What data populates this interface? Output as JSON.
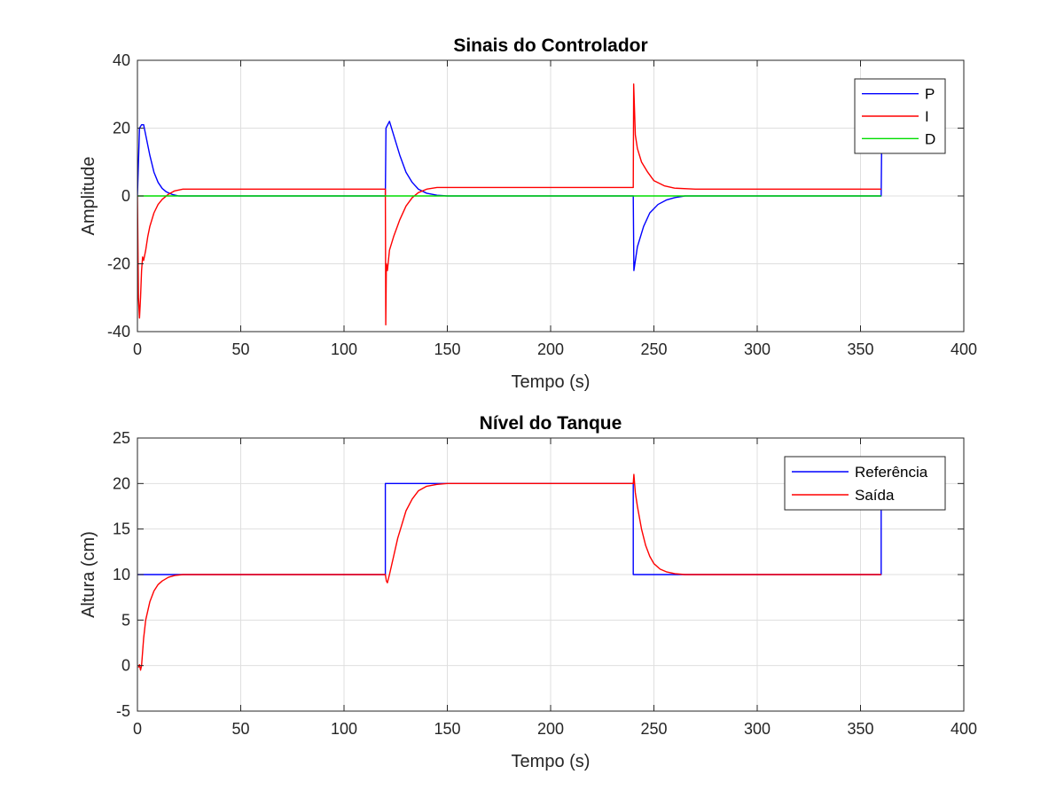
{
  "chart_data": [
    {
      "type": "line",
      "title": "Sinais do Controlador",
      "xlabel": "Tempo (s)",
      "ylabel": "Amplitude",
      "xlim": [
        0,
        400
      ],
      "ylim": [
        -40,
        40
      ],
      "xticks": [
        0,
        50,
        100,
        150,
        200,
        250,
        300,
        350,
        400
      ],
      "yticks": [
        -40,
        -20,
        0,
        20,
        40
      ],
      "grid": true,
      "legend_position": "top-right",
      "series": [
        {
          "name": "P",
          "color": "#0000ff",
          "x": [
            0,
            1,
            2,
            3,
            4,
            6,
            8,
            10,
            12,
            14,
            17,
            20,
            120,
            120.3,
            122,
            124,
            127,
            130,
            133,
            136,
            140,
            145,
            150,
            240,
            240.3,
            242,
            245,
            248,
            252,
            256,
            260,
            265,
            360,
            360.2
          ],
          "y": [
            0,
            20,
            21,
            21,
            18,
            12,
            7,
            4,
            2.2,
            1.2,
            0.4,
            0,
            0,
            20,
            22,
            18,
            12,
            7,
            4,
            2,
            0.8,
            0.2,
            0,
            0,
            -22,
            -15,
            -9,
            -5,
            -2.5,
            -1.2,
            -0.5,
            0,
            0,
            13
          ]
        },
        {
          "name": "I",
          "color": "#ff0000",
          "x": [
            0,
            0.5,
            1,
            1.5,
            2,
            2.5,
            3,
            4,
            5,
            6,
            8,
            10,
            12,
            15,
            18,
            22,
            30,
            120,
            120.2,
            120.5,
            121,
            122,
            124,
            127,
            130,
            133,
            136,
            140,
            145,
            150,
            240,
            240.2,
            241,
            242,
            244,
            247,
            250,
            255,
            260,
            270,
            360
          ],
          "y": [
            0,
            -30,
            -36,
            -30,
            -22,
            -18,
            -19,
            -16,
            -12,
            -9,
            -5,
            -2.5,
            -1,
            0.5,
            1.5,
            2,
            2,
            2,
            -38,
            -20,
            -22,
            -16,
            -12,
            -7,
            -3,
            -0.5,
            1,
            2,
            2.5,
            2.5,
            2.5,
            33,
            18,
            14,
            10,
            7,
            4.5,
            3,
            2.3,
            2,
            2
          ]
        },
        {
          "name": "D",
          "color": "#00dd00",
          "x": [
            0,
            360
          ],
          "y": [
            0,
            0
          ]
        }
      ]
    },
    {
      "type": "line",
      "title": "Nível do Tanque",
      "xlabel": "Tempo (s)",
      "ylabel": "Altura (cm)",
      "xlim": [
        0,
        400
      ],
      "ylim": [
        -5,
        25
      ],
      "xticks": [
        0,
        50,
        100,
        150,
        200,
        250,
        300,
        350,
        400
      ],
      "yticks": [
        -5,
        0,
        5,
        10,
        15,
        20,
        25
      ],
      "grid": true,
      "legend_position": "top-right",
      "series": [
        {
          "name": "Referência",
          "color": "#0000ff",
          "x": [
            0,
            120,
            120,
            240,
            240,
            360,
            360
          ],
          "y": [
            10,
            10,
            20,
            20,
            10,
            10,
            18
          ]
        },
        {
          "name": "Saída",
          "color": "#ff0000",
          "x": [
            0.5,
            1,
            1.5,
            2,
            2.5,
            3,
            4,
            5,
            6,
            8,
            10,
            12,
            15,
            18,
            22,
            30,
            120,
            120.5,
            121,
            122,
            124,
            126,
            128,
            130,
            133,
            136,
            140,
            145,
            150,
            240,
            240.3,
            241,
            242,
            244,
            246,
            248,
            250,
            253,
            256,
            260,
            265,
            360
          ],
          "y": [
            -0.2,
            0.1,
            -0.5,
            0,
            1.5,
            3,
            5,
            6,
            7,
            8.2,
            8.9,
            9.3,
            9.7,
            9.9,
            10,
            10,
            10,
            9.3,
            9.1,
            10,
            12,
            14,
            15.5,
            17,
            18.3,
            19.2,
            19.7,
            19.9,
            20,
            20,
            21,
            19,
            17.5,
            15,
            13.2,
            12,
            11.2,
            10.6,
            10.3,
            10.1,
            10,
            10
          ]
        }
      ]
    }
  ]
}
